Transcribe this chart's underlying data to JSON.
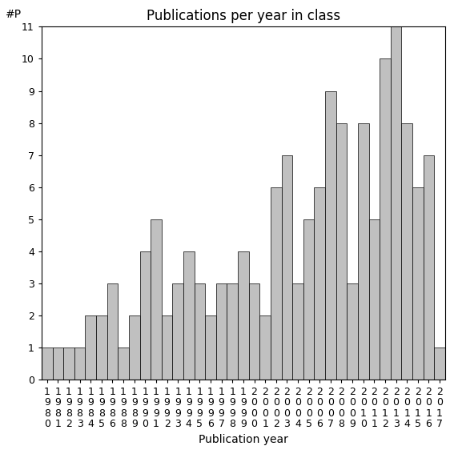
{
  "title": "Publications per year in class",
  "xlabel": "Publication year",
  "ylabel": "#P",
  "years": [
    "1980",
    "1981",
    "1982",
    "1983",
    "1984",
    "1985",
    "1986",
    "1988",
    "1989",
    "1990",
    "1991",
    "1992",
    "1993",
    "1994",
    "1995",
    "1996",
    "1997",
    "1998",
    "1999",
    "2000",
    "2001",
    "2002",
    "2003",
    "2004",
    "2005",
    "2006",
    "2007",
    "2008",
    "2009",
    "2010",
    "2011",
    "2012",
    "2013",
    "2014",
    "2015",
    "2016",
    "2017"
  ],
  "values": [
    1,
    1,
    1,
    1,
    2,
    2,
    3,
    1,
    2,
    4,
    5,
    2,
    3,
    4,
    3,
    2,
    3,
    3,
    4,
    3,
    2,
    6,
    7,
    3,
    5,
    6,
    9,
    8,
    3,
    8,
    5,
    10,
    11,
    8,
    6,
    7,
    1
  ],
  "bar_color": "#c0c0c0",
  "bar_edgecolor": "#000000",
  "ylim": [
    0,
    11
  ],
  "yticks": [
    0,
    1,
    2,
    3,
    4,
    5,
    6,
    7,
    8,
    9,
    10,
    11
  ],
  "title_fontsize": 12,
  "label_fontsize": 10,
  "tick_fontsize": 9,
  "bg_color": "#ffffff"
}
